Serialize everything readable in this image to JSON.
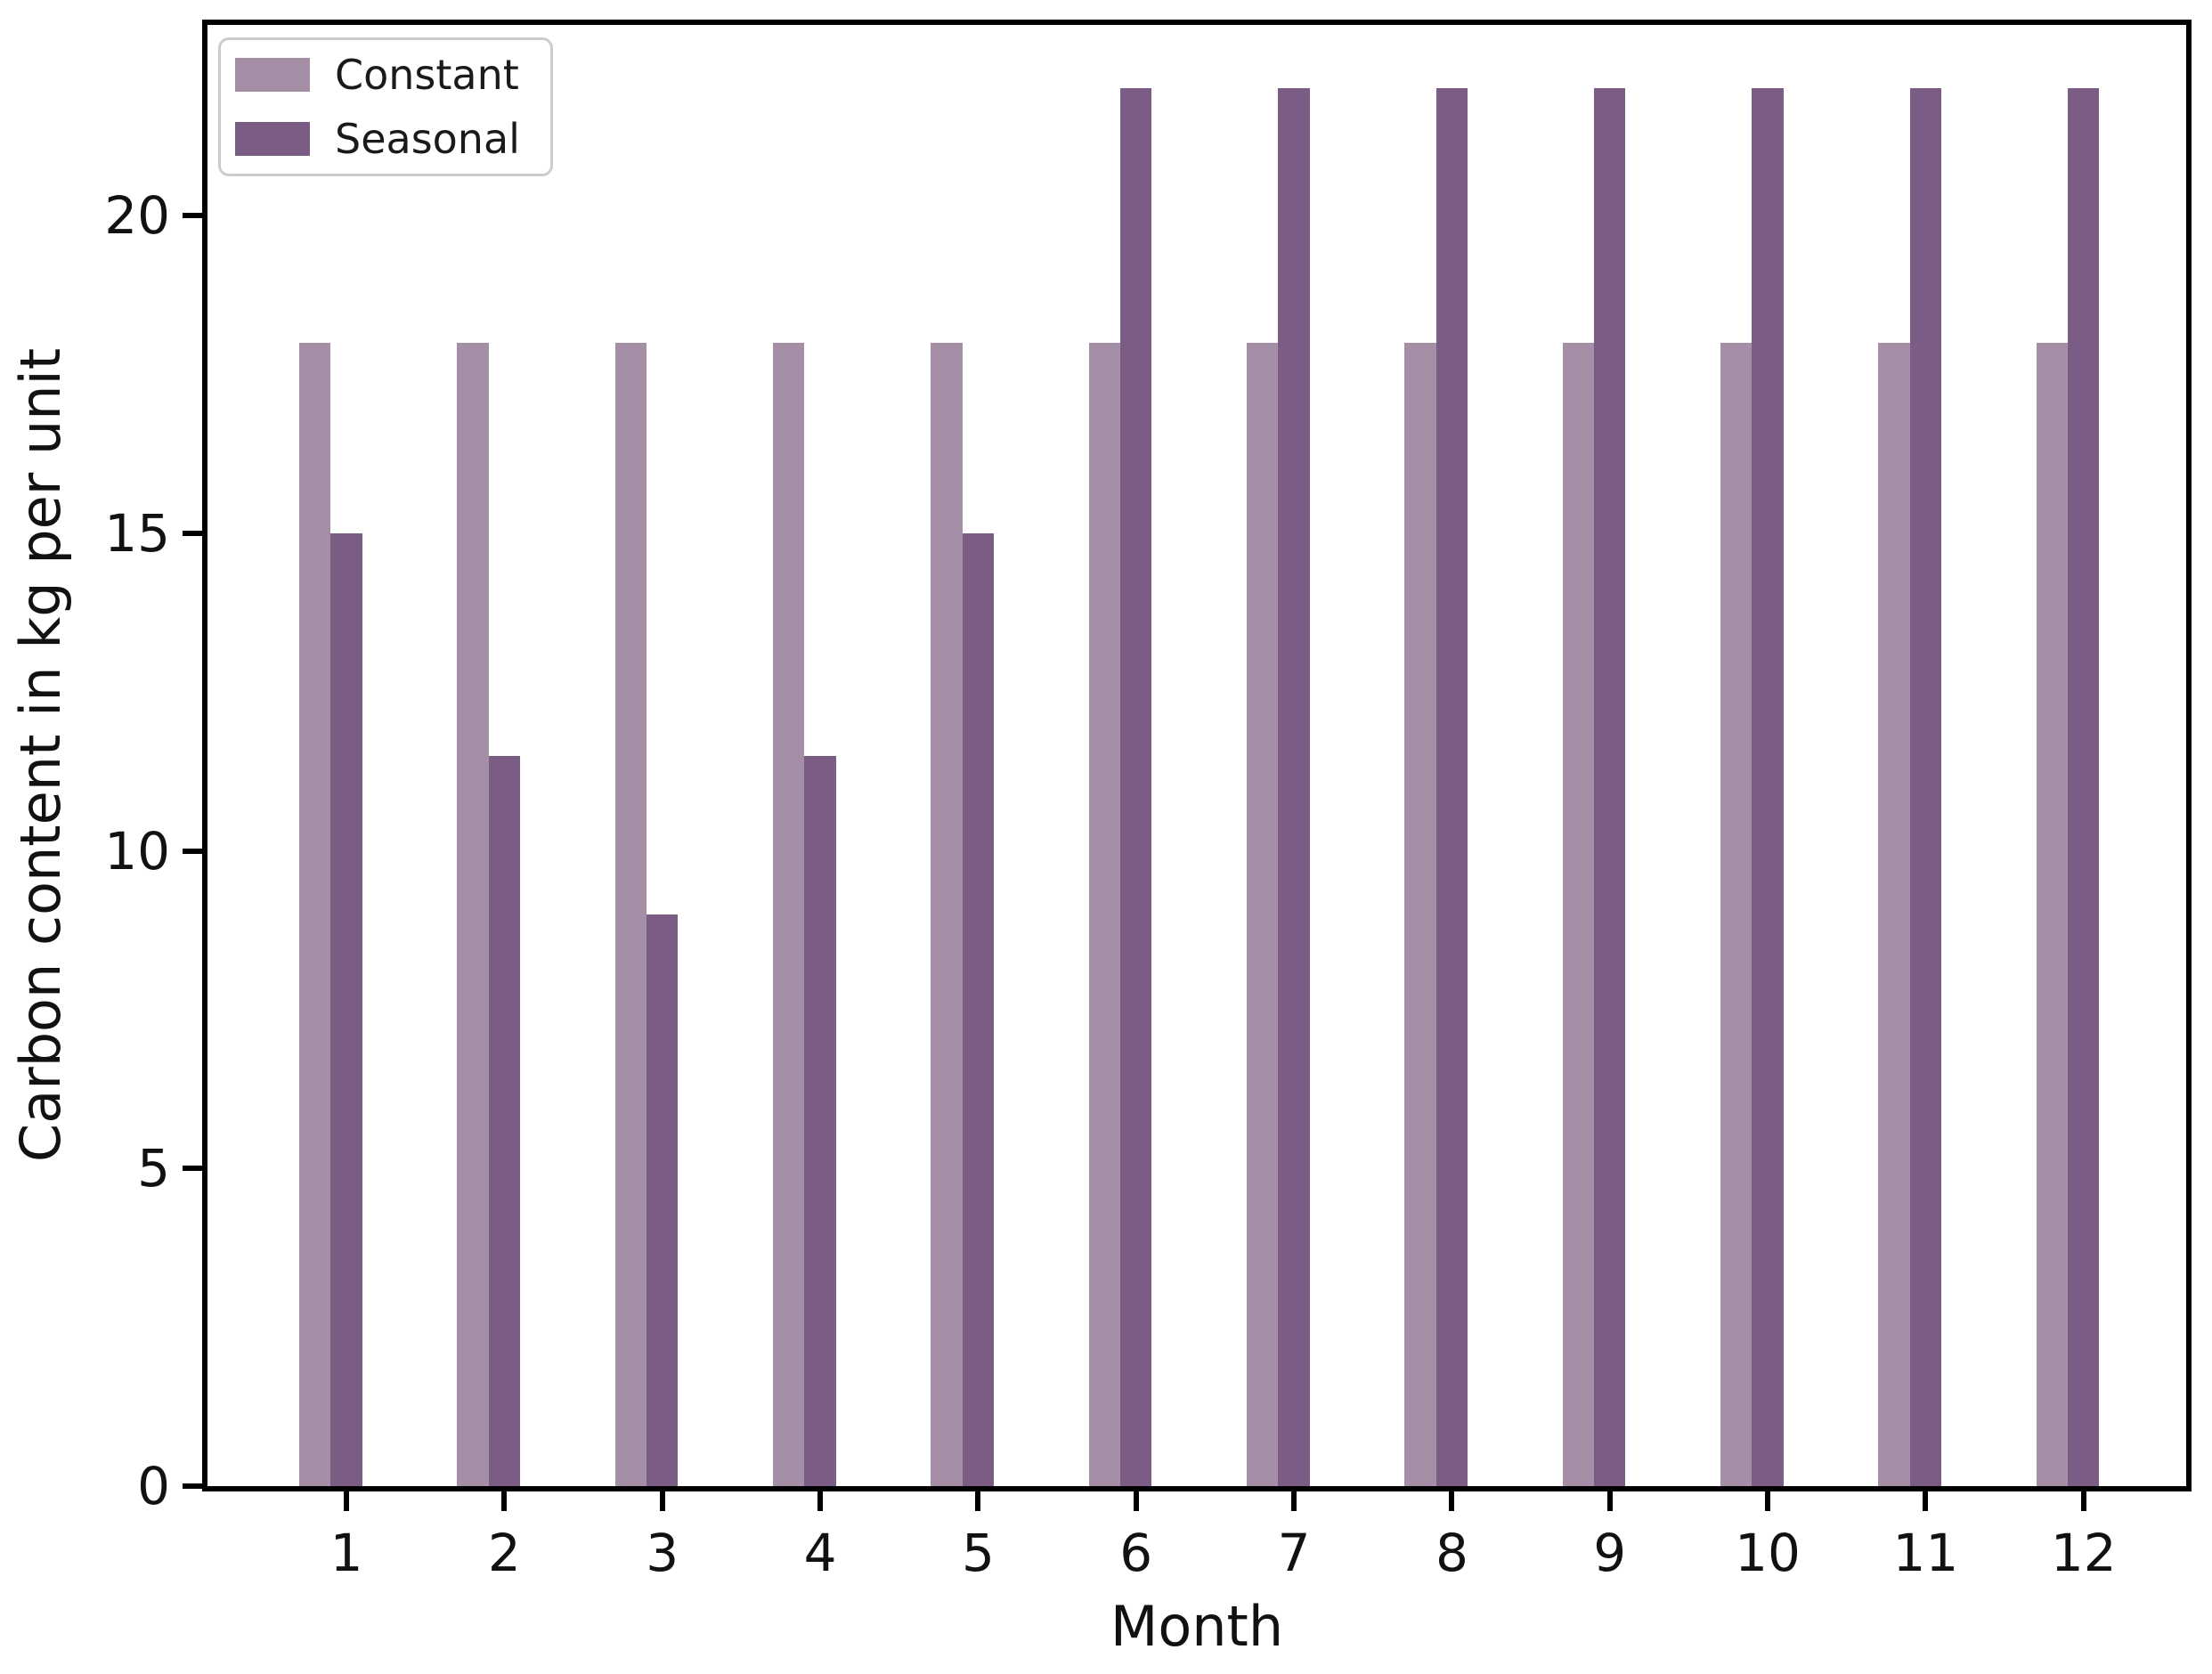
{
  "figure": {
    "background": "#ffffff"
  },
  "chart_data": {
    "type": "bar",
    "title": "",
    "xlabel": "Month",
    "ylabel": "Carbon content in kg per unit",
    "categories": [
      "1",
      "2",
      "3",
      "4",
      "5",
      "6",
      "7",
      "8",
      "9",
      "10",
      "11",
      "12"
    ],
    "series": [
      {
        "name": "Constant",
        "color": "#a48fa7",
        "values": [
          18,
          18,
          18,
          18,
          18,
          18,
          18,
          18,
          18,
          18,
          18,
          18
        ]
      },
      {
        "name": "Seasonal",
        "color": "#7b5c84",
        "values": [
          15,
          11.5,
          9,
          11.5,
          15,
          22,
          22,
          22,
          22,
          22,
          22,
          22
        ]
      }
    ],
    "yticks": [
      0,
      5,
      10,
      15,
      20
    ],
    "ylim": [
      0,
      23
    ],
    "xlim": [
      0.12,
      12.65
    ],
    "bar_width": 0.2,
    "series_offsets": [
      -0.2,
      0
    ],
    "legend_position": "upper left",
    "grid": false
  }
}
